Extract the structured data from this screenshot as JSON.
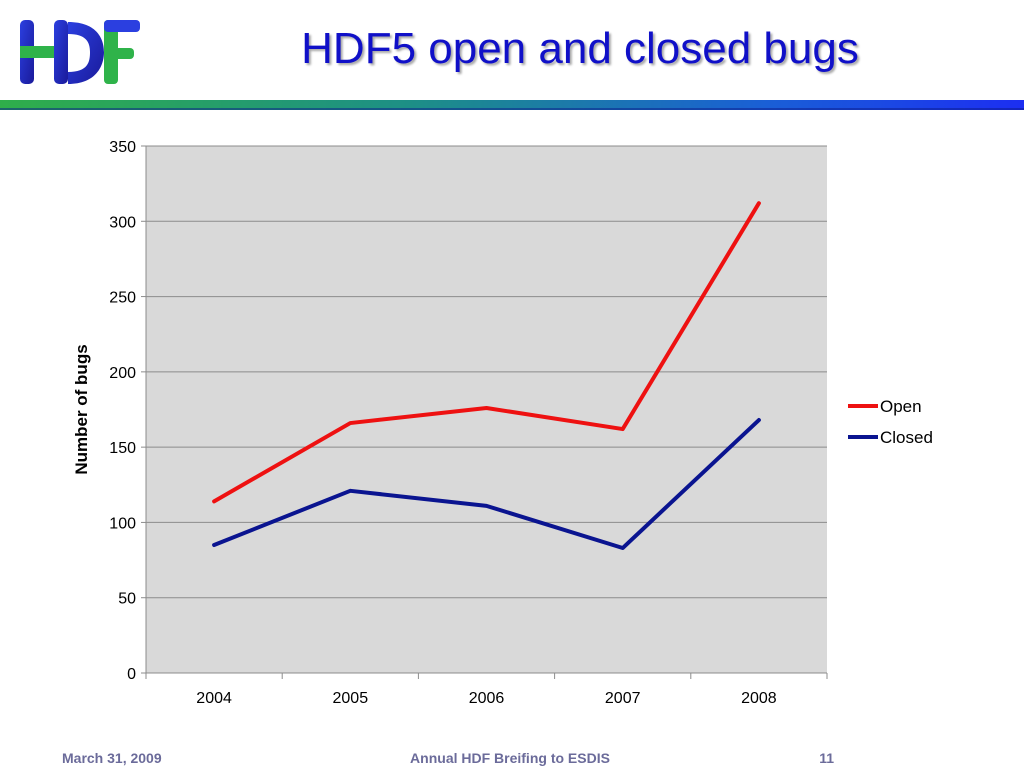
{
  "slide": {
    "title": "HDF5 open and closed bugs",
    "footer_date": "March 31, 2009",
    "footer_center": "Annual HDF Breifing to ESDIS",
    "footer_page": "11",
    "logo_icon": "hdf-logo-icon"
  },
  "chart_data": {
    "type": "line",
    "categories": [
      "2004",
      "2005",
      "2006",
      "2007",
      "2008"
    ],
    "series": [
      {
        "name": "Open",
        "values": [
          114,
          166,
          176,
          162,
          312
        ],
        "color": "#ee1111"
      },
      {
        "name": "Closed",
        "values": [
          85,
          121,
          111,
          83,
          168
        ],
        "color": "#0a1490"
      }
    ],
    "title": "",
    "xlabel": "",
    "ylabel": "Number of bugs",
    "ylim": [
      0,
      350
    ],
    "yticks": [
      0,
      50,
      100,
      150,
      200,
      250,
      300,
      350
    ],
    "grid": true,
    "legend": "right",
    "plot_background": "#d9d9d9"
  }
}
